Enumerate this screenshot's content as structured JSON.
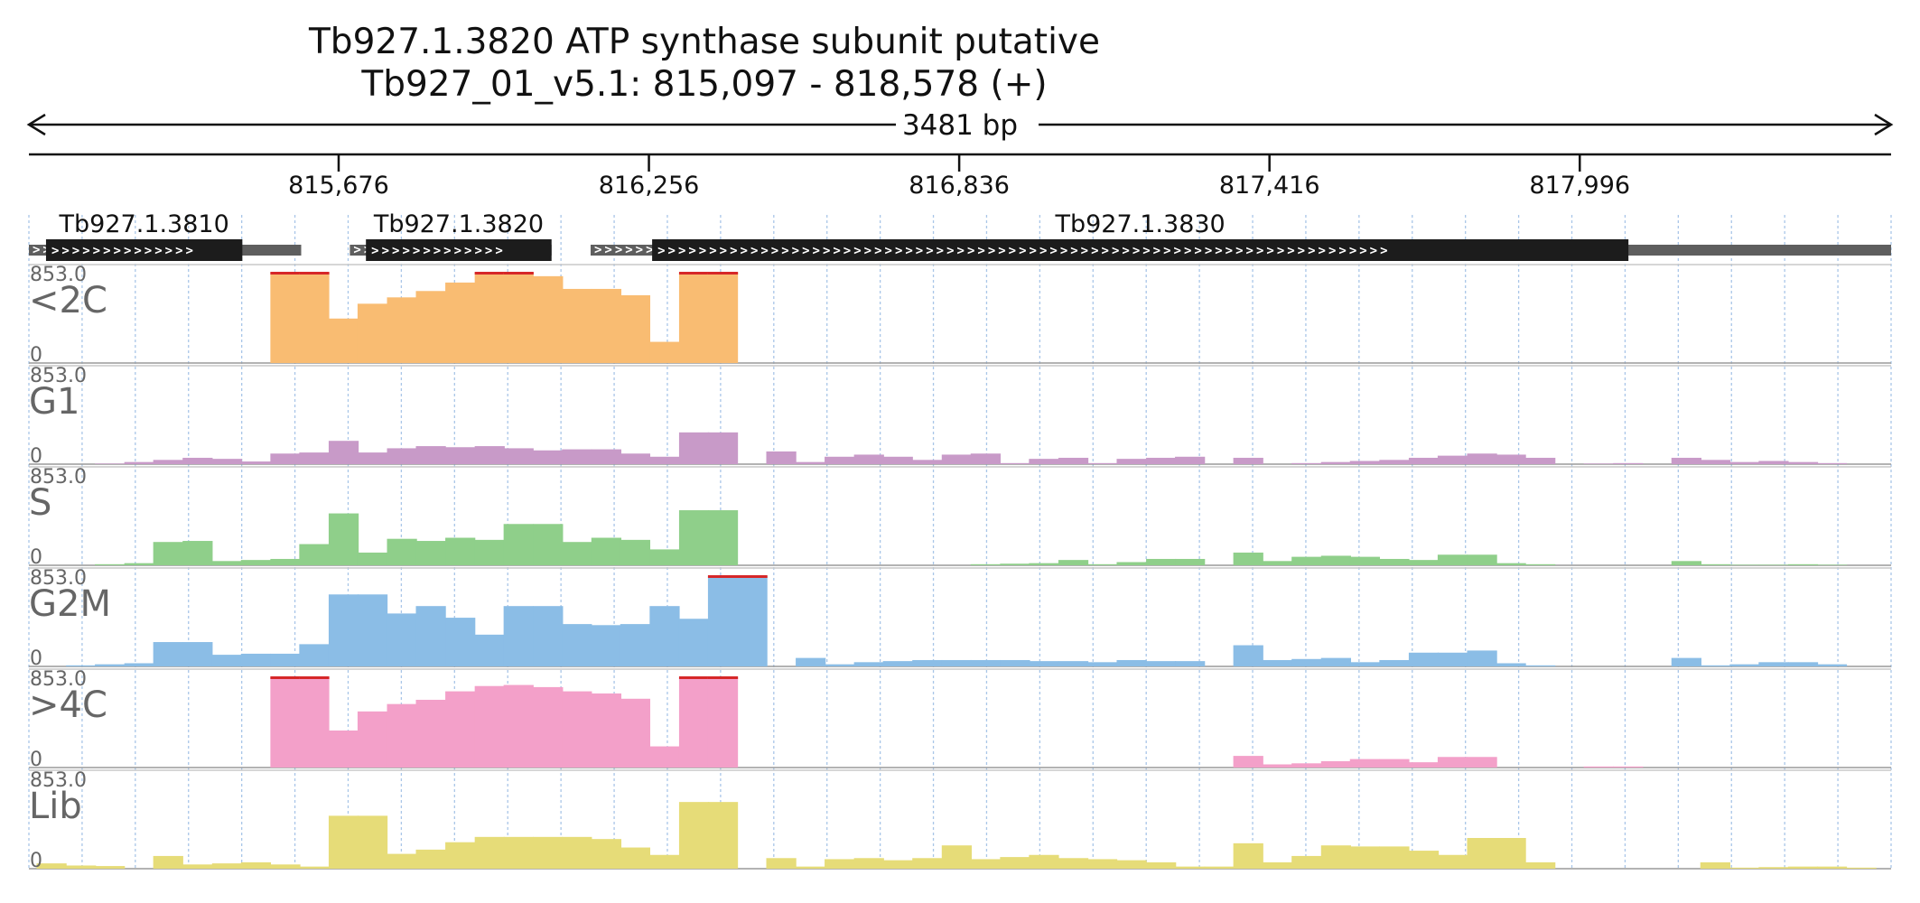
{
  "title": {
    "gene_line": "Tb927.1.3820  ATP synthase subunit  putative",
    "location_line": "Tb927_01_v5.1: 815,097 - 818,578 (+)"
  },
  "region": {
    "start": 815097,
    "end": 818578,
    "span_label": "3481 bp"
  },
  "ticks": [
    {
      "pos": 815676,
      "label": "815,676"
    },
    {
      "pos": 816256,
      "label": "816,256"
    },
    {
      "pos": 816836,
      "label": "816,836"
    },
    {
      "pos": 817416,
      "label": "817,416"
    },
    {
      "pos": 817996,
      "label": "817,996"
    }
  ],
  "genes": [
    {
      "id": "Tb927.1.3810",
      "utr_start": 815097,
      "utr_end": 815606,
      "cds_start": 815129,
      "cds_end": 815496
    },
    {
      "id": "Tb927.1.3820",
      "utr_start": 815697,
      "utr_end": 816074,
      "cds_start": 815727,
      "cds_end": 816074
    },
    {
      "id": "Tb927.1.3830",
      "utr_start": 816147,
      "utr_end": 818578,
      "cds_start": 816262,
      "cds_end": 818087
    }
  ],
  "colors": {
    "<2C": "#f9bc72",
    "G1": "#c89ac8",
    "S": "#8fcf8a",
    "G2M": "#8bbde6",
    ">4C": "#f3a0c9",
    "Lib": "#e6dc78",
    "clip": "#d62728",
    "gene": "#1c1c1c",
    "utr": "#5e5e5e",
    "grid": "#a9c6e8"
  },
  "chart_data": {
    "type": "area",
    "x_unit": "bp",
    "y_unit": "read coverage",
    "xlim": [
      815097,
      818578
    ],
    "ylim": [
      0,
      853.0
    ],
    "max_label": "853.0",
    "zero_label": "0",
    "x": [
      815139,
      815194,
      815248,
      815303,
      815357,
      815412,
      815467,
      815521,
      815576,
      815630,
      815685,
      815739,
      815794,
      815848,
      815903,
      815958,
      816012,
      816067,
      816121,
      816176,
      816230,
      816285,
      816340,
      816394,
      816449,
      816503,
      816558,
      816612,
      816667,
      816721,
      816776,
      816831,
      816885,
      816940,
      816994,
      817049,
      817103,
      817158,
      817213,
      817267,
      817322,
      817376,
      817431,
      817485,
      817540,
      817594,
      817649,
      817704,
      817758,
      817813,
      817867,
      817922,
      817976,
      818031,
      818086,
      818140,
      818195,
      818249,
      818304,
      818358,
      818413,
      818467,
      818522
    ],
    "series": [
      {
        "name": "<2C",
        "values": [
          0,
          0,
          0,
          0,
          0,
          0,
          0,
          0,
          853,
          853,
          420,
          560,
          620,
          680,
          760,
          853,
          853,
          820,
          700,
          700,
          640,
          200,
          853,
          853,
          0,
          0,
          0,
          0,
          0,
          0,
          0,
          0,
          0,
          0,
          0,
          0,
          0,
          0,
          0,
          0,
          0,
          0,
          0,
          0,
          0,
          0,
          0,
          0,
          0,
          0,
          0,
          0,
          0,
          0,
          0,
          0,
          0,
          0,
          0,
          0,
          0,
          0,
          0
        ]
      },
      {
        "name": "G1",
        "values": [
          0,
          0,
          5,
          20,
          40,
          60,
          50,
          25,
          100,
          110,
          220,
          110,
          150,
          170,
          160,
          170,
          150,
          130,
          140,
          140,
          100,
          70,
          300,
          300,
          0,
          120,
          20,
          70,
          90,
          70,
          40,
          90,
          100,
          10,
          50,
          60,
          10,
          50,
          60,
          70,
          0,
          60,
          0,
          10,
          20,
          30,
          40,
          60,
          80,
          100,
          90,
          60,
          0,
          5,
          10,
          0,
          60,
          40,
          20,
          30,
          20,
          10,
          0
        ]
      },
      {
        "name": "S",
        "values": [
          0,
          0,
          10,
          20,
          220,
          230,
          40,
          50,
          60,
          200,
          490,
          120,
          250,
          230,
          260,
          240,
          390,
          390,
          220,
          260,
          240,
          150,
          520,
          520,
          0,
          0,
          0,
          0,
          0,
          0,
          0,
          0,
          10,
          15,
          20,
          50,
          10,
          30,
          60,
          60,
          0,
          120,
          40,
          80,
          90,
          80,
          60,
          50,
          100,
          100,
          20,
          10,
          0,
          0,
          0,
          0,
          40,
          10,
          5,
          5,
          10,
          5,
          0
        ]
      },
      {
        "name": "G2M",
        "values": [
          0,
          10,
          20,
          30,
          230,
          230,
          110,
          120,
          120,
          210,
          680,
          680,
          500,
          570,
          460,
          300,
          570,
          570,
          400,
          390,
          400,
          570,
          450,
          860,
          860,
          0,
          80,
          20,
          40,
          50,
          60,
          60,
          60,
          60,
          50,
          50,
          40,
          60,
          50,
          50,
          0,
          200,
          60,
          70,
          80,
          40,
          60,
          130,
          130,
          150,
          30,
          10,
          0,
          0,
          0,
          0,
          80,
          10,
          20,
          40,
          40,
          20,
          0
        ]
      },
      {
        "name": ">4C",
        "values": [
          0,
          0,
          0,
          0,
          0,
          0,
          0,
          0,
          853,
          853,
          350,
          530,
          600,
          640,
          720,
          770,
          780,
          760,
          720,
          700,
          650,
          200,
          853,
          853,
          0,
          0,
          0,
          0,
          0,
          0,
          0,
          0,
          0,
          0,
          0,
          0,
          0,
          0,
          0,
          0,
          0,
          110,
          30,
          40,
          60,
          80,
          80,
          50,
          100,
          100,
          0,
          0,
          0,
          10,
          10,
          0,
          0,
          0,
          0,
          0,
          0,
          0,
          0
        ]
      },
      {
        "name": "Lib",
        "values": [
          50,
          30,
          25,
          0,
          120,
          40,
          50,
          60,
          40,
          20,
          500,
          500,
          140,
          180,
          250,
          300,
          300,
          300,
          300,
          280,
          200,
          130,
          630,
          630,
          0,
          100,
          20,
          90,
          100,
          80,
          100,
          220,
          90,
          110,
          130,
          100,
          90,
          80,
          60,
          20,
          20,
          240,
          60,
          120,
          220,
          210,
          210,
          170,
          130,
          290,
          290,
          60,
          0,
          0,
          0,
          0,
          0,
          60,
          10,
          15,
          20,
          20,
          10
        ]
      }
    ]
  }
}
